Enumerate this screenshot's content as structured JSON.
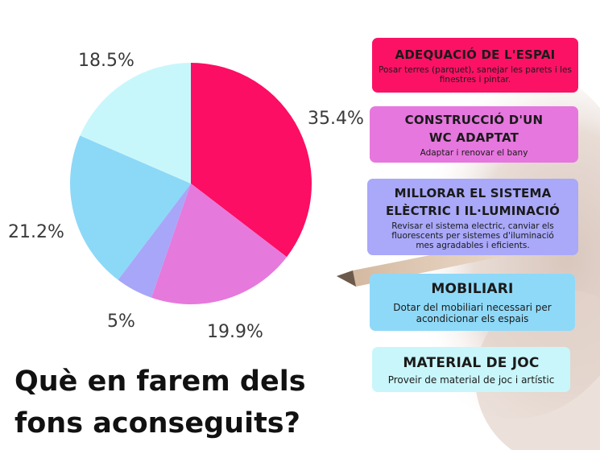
{
  "colors": {
    "background": "#ffffff",
    "slice_1": "#fb0e63",
    "slice_2": "#e679dc",
    "slice_3": "#a8a6f8",
    "slice_4": "#8cd8f7",
    "slice_5": "#c8f7fb",
    "card_1": "#fb1265",
    "card_2": "#e677de",
    "card_3": "#a9a8f9",
    "card_4": "#8fd9f8",
    "card_5": "#c9f6fb"
  },
  "chart_data": {
    "type": "pie",
    "title": "",
    "slices": [
      {
        "value": 35.4,
        "label": "35.4%",
        "color": "#fb0e63"
      },
      {
        "value": 19.9,
        "label": "19.9%",
        "color": "#e679dc"
      },
      {
        "value": 5,
        "label": "5%",
        "color": "#a8a6f8"
      },
      {
        "value": 21.2,
        "label": "21.2%",
        "color": "#8cd8f7"
      },
      {
        "value": 18.5,
        "label": "18.5%",
        "color": "#c8f7fb"
      }
    ],
    "start": "top",
    "direction": "clockwise",
    "legend": "right"
  },
  "cards": [
    {
      "title": "ADEQUACIÓ DE L'ESPAI",
      "description": "Posar terres (parquet), sanejar les   parets i les finestres i pintar."
    },
    {
      "title": "CONSTRUCCIÓ D'UN WC ADAPTAT",
      "description": "Adaptar i renovar el bany"
    },
    {
      "title": "MILLORAR EL SISTEMA ELÈCTRIC I IL·LUMINACIÓ",
      "description": "Revisar el sistema electric, canviar els fluorescents per sistemes d'iluminació mes agradables i eficients."
    },
    {
      "title": "MOBILIARI",
      "description": "Dotar del mobiliari necessari per acondicionar els espais"
    },
    {
      "title": "MATERIAL DE JOC",
      "description": "Proveir de material de joc i artístic"
    }
  ],
  "heading": "Què en farem dels fons aconseguits?",
  "decor": {
    "background_image": "hand-holding-pencil"
  }
}
